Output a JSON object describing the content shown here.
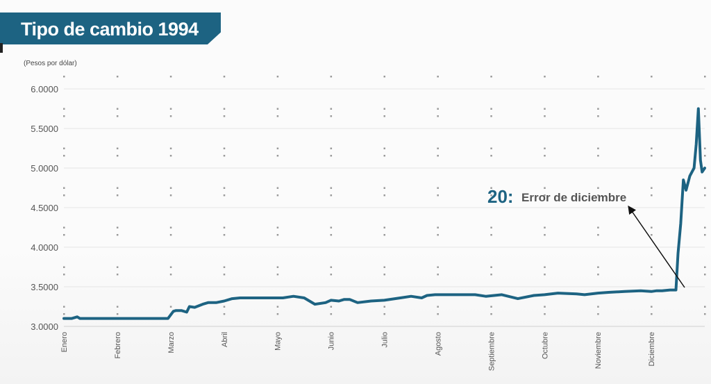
{
  "chart_data": {
    "type": "line",
    "title": "Tipo de cambio 1994",
    "ylabel": "(Pesos por dólar)",
    "xlabel": "",
    "ylim": [
      3.0,
      6.0
    ],
    "yticks": [
      "3.0000",
      "3.5000",
      "4.0000",
      "4.5000",
      "5.0000",
      "5.5000",
      "6.0000"
    ],
    "ytick_values": [
      3.0,
      3.5,
      4.0,
      4.5,
      5.0,
      5.5,
      6.0
    ],
    "xlim": [
      0,
      12
    ],
    "categories": [
      "Enero",
      "Febrero",
      "Marzo",
      "Abril",
      "Mayo",
      "Junio",
      "Julio",
      "Agosto",
      "Septiembre",
      "Octubre",
      "Noviembre",
      "Diciembre"
    ],
    "series": [
      {
        "name": "Tipo de cambio",
        "color": "#1d6382",
        "x": [
          0.0,
          0.15,
          0.25,
          0.3,
          0.4,
          1.0,
          1.5,
          1.95,
          2.05,
          2.1,
          2.2,
          2.3,
          2.35,
          2.45,
          2.6,
          2.7,
          2.85,
          3.0,
          3.15,
          3.3,
          3.6,
          3.8,
          3.95,
          4.1,
          4.2,
          4.3,
          4.5,
          4.7,
          4.9,
          5.0,
          5.15,
          5.25,
          5.35,
          5.5,
          5.75,
          6.0,
          6.3,
          6.5,
          6.7,
          6.8,
          6.95,
          7.1,
          7.3,
          7.4,
          7.55,
          7.7,
          7.9,
          8.2,
          8.5,
          8.8,
          9.0,
          9.25,
          9.6,
          9.75,
          10.0,
          10.2,
          10.5,
          10.8,
          11.0,
          11.1,
          11.2,
          11.35,
          11.42,
          11.46,
          11.5,
          11.55,
          11.6,
          11.65,
          11.72,
          11.8,
          11.84,
          11.88,
          11.92,
          11.95,
          12.0
        ],
        "values": [
          3.1,
          3.1,
          3.12,
          3.1,
          3.1,
          3.1,
          3.1,
          3.1,
          3.19,
          3.2,
          3.2,
          3.18,
          3.25,
          3.24,
          3.28,
          3.3,
          3.3,
          3.32,
          3.35,
          3.36,
          3.36,
          3.36,
          3.36,
          3.36,
          3.37,
          3.38,
          3.36,
          3.28,
          3.3,
          3.33,
          3.32,
          3.34,
          3.34,
          3.3,
          3.32,
          3.33,
          3.36,
          3.38,
          3.36,
          3.39,
          3.4,
          3.4,
          3.4,
          3.4,
          3.4,
          3.4,
          3.38,
          3.4,
          3.35,
          3.39,
          3.4,
          3.42,
          3.41,
          3.4,
          3.42,
          3.43,
          3.44,
          3.45,
          3.44,
          3.45,
          3.45,
          3.46,
          3.46,
          3.46,
          3.92,
          4.3,
          4.85,
          4.72,
          4.9,
          5.0,
          5.3,
          5.75,
          5.1,
          4.95,
          5.0
        ]
      }
    ],
    "annotations": [
      {
        "number": "20:",
        "text": "Error de diciembre"
      }
    ]
  }
}
